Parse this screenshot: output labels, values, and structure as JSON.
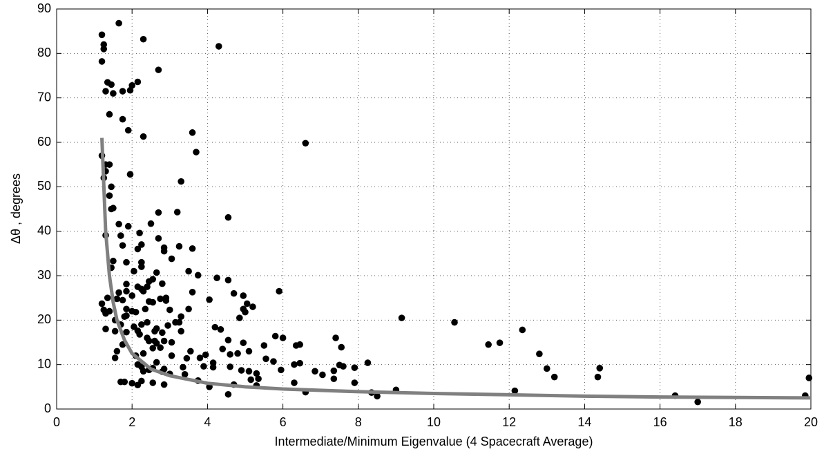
{
  "chart_data": {
    "type": "scatter",
    "xlabel": "Intermediate/Minimum Eigenvalue (4 Spacecraft Average)",
    "ylabel": "Δθ , degrees",
    "xlim": [
      0,
      20
    ],
    "ylim": [
      0,
      90
    ],
    "xticks": [
      0,
      2,
      4,
      6,
      8,
      10,
      12,
      14,
      16,
      18,
      20
    ],
    "yticks": [
      0,
      10,
      20,
      30,
      40,
      50,
      60,
      70,
      80,
      90
    ],
    "grid": true,
    "series": [
      {
        "type": "scatter",
        "color": "#000000",
        "x": [
          1.2,
          1.25,
          1.25,
          1.2,
          1.65,
          2.3,
          1.35,
          1.45,
          1.3,
          1.5,
          1.75,
          1.95,
          2,
          2.15,
          2.7,
          4.3,
          1.4,
          1.75,
          1.9,
          2.3,
          3.6,
          3.7,
          6.6,
          1.2,
          1.3,
          1.4,
          1.25,
          1.3,
          1.95,
          3.3,
          1.45,
          1.45,
          1.5,
          1.4,
          4.55,
          2.7,
          3.2,
          2.5,
          1.65,
          1.9,
          1.3,
          1.7,
          2.2,
          2.7,
          1.75,
          2.25,
          2.15,
          2.85,
          2.85,
          3.25,
          3.6,
          1.5,
          1.45,
          1.85,
          2.25,
          2.05,
          2.65,
          3.05,
          3.5,
          3.75,
          2.25,
          1.85,
          2.15,
          2.45,
          2.55,
          2.8,
          4.25,
          4.55,
          1.65,
          1.85,
          2,
          2.25,
          2.3,
          2.4,
          2.9,
          3.6,
          4.7,
          4.95,
          5.9,
          1.35,
          1.6,
          1.75,
          1.2,
          1.25,
          1.3,
          1.4,
          1.85,
          2,
          2.1,
          2.35,
          2.45,
          2.55,
          2.75,
          2.9,
          3,
          3.3,
          3.5,
          4.05,
          4.95,
          5.2,
          5.05,
          1.55,
          1.7,
          1.8,
          1.85,
          2.05,
          2.25,
          2.4,
          2.65,
          2.95,
          3.15,
          3.25,
          4.2,
          4.35,
          4.85,
          5,
          9.15,
          10.55,
          12.35,
          1.3,
          1.55,
          1.85,
          2.15,
          2.2,
          2.6,
          2.8,
          3.3,
          5.8,
          6,
          7.4,
          2.4,
          2.45,
          2.6,
          2.65,
          2.85,
          3.05,
          3.55,
          4.55,
          4.95,
          5.5,
          6.35,
          6.45,
          7.55,
          11.45,
          11.75,
          1.55,
          1.6,
          1.75,
          2.1,
          2.3,
          2.55,
          2.75,
          3.05,
          3.45,
          3.8,
          3.95,
          4.15,
          4.4,
          4.6,
          4.8,
          5.1,
          5.55,
          5.75,
          6.3,
          6.45,
          7.35,
          7.5,
          7.6,
          8.25,
          12.8,
          2.15,
          2.25,
          2.3,
          2.45,
          2.55,
          2.65,
          2.85,
          3,
          3.35,
          3.4,
          3.9,
          4.15,
          4.6,
          4.9,
          5.1,
          5.3,
          5.95,
          6.85,
          7.05,
          7.35,
          7.9,
          13,
          14.4,
          14.35,
          13.2,
          1.7,
          1.8,
          2,
          2.15,
          2.25,
          2.55,
          2.8,
          2.85,
          3.75,
          4.05,
          4.55,
          4.7,
          5.3,
          5.35,
          5.15,
          6.3,
          6.6,
          7.9,
          8.35,
          8.5,
          9,
          12.15,
          16.4,
          17,
          19.85,
          19.95
        ],
        "values": [
          84.2,
          82,
          81,
          78.2,
          86.8,
          83.2,
          73.5,
          73,
          71.5,
          71,
          71.5,
          71.7,
          72.8,
          73.6,
          76.3,
          81.6,
          66.3,
          65.2,
          62.7,
          61.3,
          62.2,
          57.8,
          59.8,
          57,
          55,
          55,
          52,
          53.5,
          52.8,
          51.2,
          50,
          45,
          45.2,
          48,
          43.1,
          44.2,
          44.3,
          41.7,
          41.6,
          41.1,
          39.1,
          39,
          39.6,
          38.4,
          36.8,
          37,
          36,
          36.3,
          35.5,
          36.6,
          36.1,
          33.3,
          31.8,
          33,
          33,
          31,
          30.7,
          33.8,
          31,
          30.1,
          32,
          28.1,
          27.5,
          28.7,
          29.2,
          28.2,
          29.5,
          29,
          26.2,
          26.5,
          25.5,
          27,
          26.5,
          27.5,
          25,
          26.3,
          26,
          25.5,
          26.5,
          25,
          24.8,
          24.5,
          23.7,
          22.3,
          21.5,
          22,
          22.5,
          22,
          21.8,
          22.5,
          24.2,
          24,
          24.8,
          24.4,
          22.3,
          20.8,
          22.5,
          24.6,
          22.5,
          23,
          23.7,
          20,
          19,
          20.8,
          21,
          18.5,
          19,
          19.5,
          18.1,
          18.8,
          19.5,
          19.5,
          18.4,
          17.9,
          20.5,
          21.8,
          20.5,
          19.5,
          17.8,
          18,
          17.5,
          17.3,
          17.6,
          16.8,
          17.5,
          17.2,
          17.5,
          16.4,
          16,
          16,
          16,
          15.3,
          15.3,
          14.8,
          15.3,
          15,
          13,
          15.5,
          14.9,
          14.3,
          14.3,
          14.5,
          13.9,
          14.5,
          14.9,
          11.5,
          13,
          14.5,
          12,
          12.5,
          13.7,
          13.8,
          12,
          11.4,
          11.5,
          12.2,
          10.4,
          13.5,
          12.3,
          12.5,
          13,
          11.3,
          10.7,
          10,
          10.3,
          8.6,
          9.9,
          9.6,
          10.4,
          12.4,
          10,
          9.5,
          8.5,
          8.8,
          9.2,
          10.5,
          9,
          7.9,
          9.4,
          7.8,
          9.6,
          9.4,
          9.5,
          8.7,
          8.5,
          8,
          8.8,
          8.5,
          7.7,
          6.8,
          9.3,
          9.1,
          9.2,
          7.2,
          7.2,
          6.1,
          6.1,
          5.8,
          5.4,
          6.3,
          5.9,
          8.4,
          5.5,
          6.4,
          5,
          3.3,
          5.5,
          5.3,
          6.8,
          6.6,
          5.9,
          3.8,
          5.9,
          3.7,
          2.9,
          4.3,
          4.1,
          3,
          1.6,
          3,
          7
        ]
      },
      {
        "type": "line",
        "color": "#808080",
        "x": [
          1.2,
          1.3,
          1.4,
          1.5,
          1.6,
          1.8,
          2,
          2.5,
          3,
          4,
          5,
          6,
          8,
          10,
          12,
          14,
          16,
          18,
          20
        ],
        "values": [
          61,
          40,
          30,
          24,
          20,
          15.5,
          12.5,
          9,
          7.5,
          5.8,
          5,
          4.5,
          3.9,
          3.5,
          3.2,
          2.9,
          2.7,
          2.6,
          2.5
        ]
      }
    ]
  }
}
